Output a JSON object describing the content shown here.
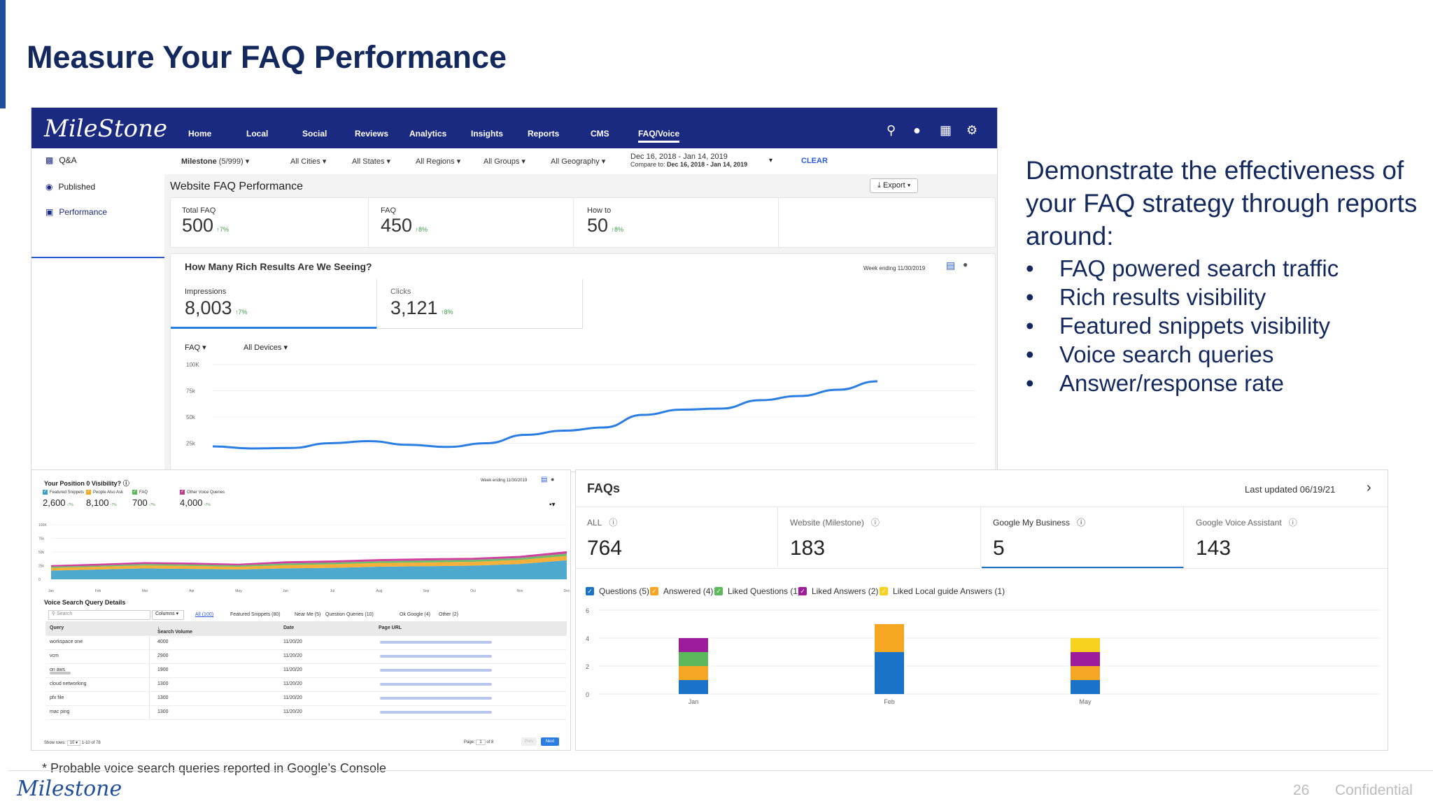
{
  "slide": {
    "title": "Measure Your FAQ Performance",
    "intro": "Demonstrate the effectiveness of your FAQ strategy through reports around:",
    "bullets": [
      "FAQ powered search traffic",
      "Rich results visibility",
      "Featured snippets visibility",
      "Voice search queries",
      "Answer/response rate"
    ],
    "footnote": "* Probable voice search queries reported in Google’s Console",
    "footer_logo": "Milestone",
    "page_number": "26",
    "confidential": "Confidential"
  },
  "dashboard": {
    "logo": "MileStone",
    "nav": [
      "Home",
      "Local",
      "Social",
      "Reviews",
      "Analytics",
      "Insights",
      "Reports",
      "CMS",
      "FAQ/Voice"
    ],
    "sidebar": [
      "Q&A",
      "Published",
      "Performance"
    ],
    "filters": {
      "account": "Milestone",
      "account_count": "(5/999)",
      "cities": "All Cities",
      "states": "All States",
      "regions": "All Regions",
      "groups": "All Groups",
      "geography": "All Geography",
      "date_range": "Dec 16, 2018 - Jan 14, 2019",
      "compare_label": "Compare to:",
      "compare_range": "Dec 16, 2018 - Jan 14, 2019",
      "clear": "CLEAR"
    },
    "panel_title": "Website FAQ Performance",
    "export": "Export",
    "kpis": [
      {
        "label": "Total FAQ",
        "value": "500",
        "change": "7%"
      },
      {
        "label": "FAQ",
        "value": "450",
        "change": "8%"
      },
      {
        "label": "How to",
        "value": "50",
        "change": "8%"
      }
    ],
    "rich_title": "How Many Rich Results Are We Seeing?",
    "week_ending": "Week ending 11/30/2019",
    "rich_kpis": [
      {
        "label": "Impressions",
        "value": "8,003",
        "change": "7%"
      },
      {
        "label": "Clicks",
        "value": "3,121",
        "change": "8%"
      }
    ],
    "chart_filter_1": "FAQ",
    "chart_filter_2": "All Devices"
  },
  "voice": {
    "title": "Your Position 0 Visibility?",
    "week_ending": "Week ending 11/30/2019",
    "legend": [
      {
        "label": "Featured Snippets",
        "value": "2,600",
        "color": "#3aa0c8"
      },
      {
        "label": "People Also Ask",
        "value": "8,100",
        "color": "#f5a623"
      },
      {
        "label": "FAQ",
        "value": "700",
        "color": "#5bb85b"
      },
      {
        "label": "Other Voice Queries",
        "value": "4,000",
        "color": "#c23a8e"
      }
    ],
    "change": "7%",
    "details_title": "Voice Search Query Details",
    "search_placeholder": "Search",
    "columns_btn": "Columns",
    "tabs": [
      "All (100)",
      "Featured Snippets (80)",
      "Near Me (5)",
      "Question Queries (10)",
      "Ok Google (4)",
      "Other (2)"
    ],
    "headers": [
      "Query",
      "Search Volume",
      "Date",
      "Page URL"
    ],
    "rows": [
      {
        "query": "workspace one",
        "volume": "4000",
        "date": "11/20/20"
      },
      {
        "query": "vcm",
        "volume": "2900",
        "date": "11/20/20"
      },
      {
        "query": "on aws",
        "volume": "1900",
        "date": "11/20/20"
      },
      {
        "query": "cloud networking",
        "volume": "1300",
        "date": "11/20/20"
      },
      {
        "query": "pfx file",
        "volume": "1300",
        "date": "11/20/20"
      },
      {
        "query": "mac ping",
        "volume": "1300",
        "date": "11/20/20"
      }
    ],
    "show_rows": "Show rows:",
    "rows_value": "10",
    "range": "1-10 of 78",
    "page_label": "Page:",
    "page_value": "1",
    "of_pages": "of 8",
    "prev": "Prev",
    "next": "Next"
  },
  "faqs": {
    "title": "FAQs",
    "last_updated": "Last updated 06/19/21",
    "stats": [
      {
        "label": "ALL",
        "value": "764"
      },
      {
        "label": "Website (Milestone)",
        "value": "183"
      },
      {
        "label": "Google My Business",
        "value": "5"
      },
      {
        "label": "Google Voice Assistant",
        "value": "143"
      }
    ],
    "legend": [
      {
        "label": "Questions (5)",
        "color": "#1a73c8"
      },
      {
        "label": "Answered (4)",
        "color": "#f5a623"
      },
      {
        "label": "Liked Questions (1)",
        "color": "#5bb85b"
      },
      {
        "label": "Liked Answers (2)",
        "color": "#9c1c9c"
      },
      {
        "label": "Liked Local guide Answers (1)",
        "color": "#f6d21f"
      }
    ]
  },
  "chart_data": [
    {
      "type": "line",
      "title": "",
      "y_ticks": [
        "100K",
        "75k",
        "50k",
        "25k"
      ],
      "ylim": [
        0,
        100000
      ],
      "x": [
        0,
        1,
        2,
        3,
        4,
        5,
        6,
        7,
        8,
        9,
        10,
        11,
        12,
        13,
        14,
        15,
        16,
        17
      ],
      "series": [
        {
          "values": [
            22000,
            20000,
            20500,
            25000,
            27000,
            23500,
            21500,
            25000,
            33000,
            37000,
            40000,
            52000,
            57000,
            58000,
            66000,
            70000,
            76000,
            84000
          ]
        }
      ]
    },
    {
      "type": "area",
      "categories": [
        "Jan",
        "Feb",
        "Mar",
        "Apr",
        "May",
        "Jun",
        "Jul",
        "Aug",
        "Sep",
        "Oct",
        "Nov",
        "Dec"
      ],
      "y_ticks": [
        "100K",
        "75k",
        "50k",
        "25k",
        "0"
      ],
      "ylim": [
        0,
        100000
      ],
      "series": [
        {
          "name": "Featured Snippets",
          "values": [
            16000,
            18000,
            20000,
            19000,
            18000,
            20000,
            21000,
            23000,
            24000,
            25000,
            28000,
            35000
          ]
        },
        {
          "name": "People Also Ask",
          "values": [
            5000,
            5000,
            5500,
            5500,
            5000,
            6000,
            6500,
            7000,
            7000,
            7000,
            7500,
            8000
          ]
        },
        {
          "name": "FAQ",
          "values": [
            2000,
            2000,
            2500,
            2500,
            2500,
            3000,
            3000,
            3000,
            3500,
            3500,
            3500,
            4000
          ]
        },
        {
          "name": "Other Voice Queries",
          "values": [
            2000,
            2500,
            2500,
            2500,
            2000,
            3000,
            3000,
            3000,
            3000,
            3000,
            3000,
            3500
          ]
        }
      ]
    },
    {
      "type": "bar",
      "stacked": true,
      "categories": [
        "Jan",
        "Feb",
        "May"
      ],
      "y_ticks": [
        "6",
        "4",
        "2",
        "0"
      ],
      "ylim": [
        0,
        6
      ],
      "series": [
        {
          "name": "Questions (5)",
          "values": [
            1,
            3,
            1
          ]
        },
        {
          "name": "Answered (4)",
          "values": [
            1,
            2,
            1
          ]
        },
        {
          "name": "Liked Questions (1)",
          "values": [
            1,
            0,
            0
          ]
        },
        {
          "name": "Liked Answers (2)",
          "values": [
            1,
            0,
            1
          ]
        },
        {
          "name": "Liked Local guide Answers (1)",
          "values": [
            0,
            0,
            1
          ]
        }
      ]
    }
  ]
}
